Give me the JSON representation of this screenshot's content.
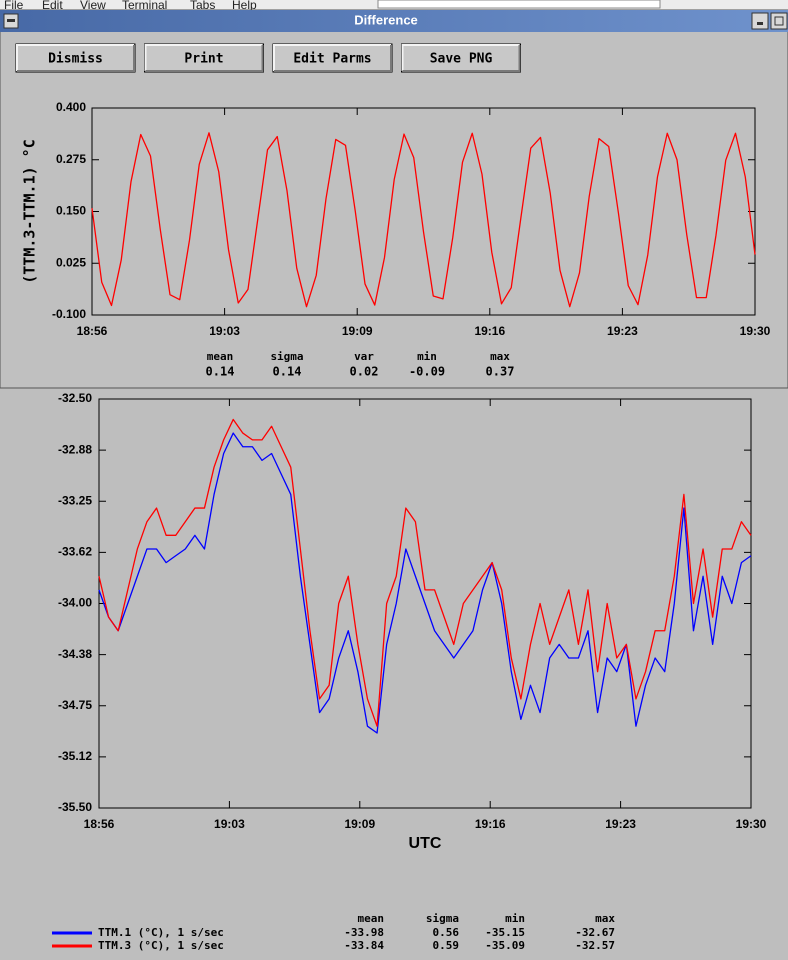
{
  "menu": [
    "File",
    "Edit",
    "View",
    "Terminal",
    "Tabs",
    "Help"
  ],
  "window": {
    "title": "Difference",
    "buttons": [
      "Dismiss",
      "Print",
      "Edit Parms",
      "Save PNG"
    ]
  },
  "chart_data": [
    {
      "type": "line",
      "ylabel": "(TTM.3-TTM.1) °C",
      "xlim": [
        1136,
        1170
      ],
      "xticks": [
        {
          "value": 1136,
          "label": "18:56"
        },
        {
          "value": 1142.8,
          "label": "19:03"
        },
        {
          "value": 1149.6,
          "label": "19:09"
        },
        {
          "value": 1156.4,
          "label": "19:16"
        },
        {
          "value": 1163.2,
          "label": "19:23"
        },
        {
          "value": 1170,
          "label": "19:30"
        }
      ],
      "ylim": [
        -0.1,
        0.4
      ],
      "yticks": [
        {
          "value": 0.4,
          "label": "0.400"
        },
        0.275,
        {
          "value": 0.15,
          "label": "0.150"
        },
        0.025,
        {
          "value": -0.1,
          "label": "-0.100"
        }
      ],
      "grid": false,
      "x": [
        1136,
        1136.5,
        1137,
        1137.5,
        1138,
        1138.5,
        1139,
        1139.5,
        1140,
        1140.5,
        1141,
        1141.5,
        1142,
        1142.5,
        1143,
        1143.5,
        1144,
        1144.5,
        1145,
        1145.5,
        1146,
        1146.5,
        1147,
        1147.5,
        1148,
        1148.5,
        1149,
        1149.5,
        1150,
        1150.5,
        1151,
        1151.5,
        1152,
        1152.5,
        1153,
        1153.5,
        1154,
        1154.5,
        1155,
        1155.5,
        1156,
        1156.5,
        1157,
        1157.5,
        1158,
        1158.5,
        1159,
        1159.5,
        1160,
        1160.5,
        1161,
        1161.5,
        1162,
        1162.5,
        1163,
        1163.5,
        1164,
        1164.5,
        1165,
        1165.5,
        1166,
        1166.5,
        1167,
        1167.5,
        1168,
        1168.5,
        1169,
        1169.5,
        1170
      ],
      "series": [
        {
          "color": "#ff0000",
          "values": [
            0.158,
            -0.021,
            -0.077,
            0.033,
            0.222,
            0.336,
            0.284,
            0.107,
            -0.051,
            -0.063,
            0.081,
            0.264,
            0.34,
            0.246,
            0.058,
            -0.071,
            -0.038,
            0.131,
            0.299,
            0.331,
            0.2,
            0.013,
            -0.08,
            -0.004,
            0.181,
            0.324,
            0.31,
            0.151,
            -0.025,
            -0.076,
            0.039,
            0.228,
            0.337,
            0.28,
            0.101,
            -0.054,
            -0.061,
            0.087,
            0.269,
            0.339,
            0.24,
            0.052,
            -0.073,
            -0.034,
            0.137,
            0.303,
            0.329,
            0.194,
            0.008,
            -0.08,
            0.002,
            0.187,
            0.326,
            0.307,
            0.145,
            -0.029,
            -0.075,
            0.045,
            0.234,
            0.339,
            0.275,
            0.094,
            -0.058,
            -0.058,
            0.093,
            0.274,
            0.339,
            0.234,
            0.046
          ]
        }
      ],
      "statistics": {
        "headers": [
          "mean",
          "sigma",
          "var",
          "min",
          "max"
        ],
        "values": [
          0.14,
          0.14,
          0.02,
          -0.09,
          0.37
        ]
      }
    },
    {
      "type": "line",
      "xlabel": "UTC",
      "xlim": [
        1136,
        1170
      ],
      "xticks": [
        {
          "value": 1136,
          "label": "18:56"
        },
        {
          "value": 1142.8,
          "label": "19:03"
        },
        {
          "value": 1149.6,
          "label": "19:09"
        },
        {
          "value": 1156.4,
          "label": "19:16"
        },
        {
          "value": 1163.2,
          "label": "19:23"
        },
        {
          "value": 1170,
          "label": "19:30"
        }
      ],
      "ylim": [
        -35.5,
        -32.5
      ],
      "yticks": [
        {
          "value": -32.5,
          "label": "-32.50"
        },
        {
          "value": -32.875,
          "label": "-32.88"
        },
        -33.25,
        {
          "value": -33.625,
          "label": "-33.62"
        },
        {
          "value": -34,
          "label": "-34.00"
        },
        {
          "value": -34.375,
          "label": "-34.38"
        },
        -34.75,
        {
          "value": -35.125,
          "label": "-35.12"
        },
        {
          "value": -35.5,
          "label": "-35.50"
        }
      ],
      "grid": false,
      "x": [
        1136,
        1136.5,
        1137,
        1137.5,
        1138,
        1138.5,
        1139,
        1139.5,
        1140,
        1140.5,
        1141,
        1141.5,
        1142,
        1142.5,
        1143,
        1143.5,
        1144,
        1144.5,
        1145,
        1145.5,
        1146,
        1146.5,
        1147,
        1147.5,
        1148,
        1148.5,
        1149,
        1149.5,
        1150,
        1150.5,
        1151,
        1151.5,
        1152,
        1152.5,
        1153,
        1153.5,
        1154,
        1154.5,
        1155,
        1155.5,
        1156,
        1156.5,
        1157,
        1157.5,
        1158,
        1158.5,
        1159,
        1159.5,
        1160,
        1160.5,
        1161,
        1161.5,
        1162,
        1162.5,
        1163,
        1163.5,
        1164,
        1164.5,
        1165,
        1165.5,
        1166,
        1166.5,
        1167,
        1167.5,
        1168,
        1168.5,
        1169,
        1169.5,
        1170
      ],
      "series": [
        {
          "name": "TTM.1 (°C), 1 s/sec",
          "color": "#0000ff",
          "values": [
            -33.9,
            -34.1,
            -34.2,
            -34.0,
            -33.8,
            -33.6,
            -33.6,
            -33.7,
            -33.65,
            -33.6,
            -33.5,
            -33.6,
            -33.2,
            -32.9,
            -32.75,
            -32.85,
            -32.85,
            -32.95,
            -32.9,
            -33.05,
            -33.2,
            -33.8,
            -34.3,
            -34.8,
            -34.7,
            -34.4,
            -34.2,
            -34.5,
            -34.9,
            -34.95,
            -34.3,
            -34.0,
            -33.6,
            -33.8,
            -34.0,
            -34.2,
            -34.3,
            -34.4,
            -34.3,
            -34.2,
            -33.9,
            -33.7,
            -34.0,
            -34.5,
            -34.85,
            -34.6,
            -34.8,
            -34.4,
            -34.3,
            -34.4,
            -34.4,
            -34.2,
            -34.8,
            -34.4,
            -34.5,
            -34.3,
            -34.9,
            -34.6,
            -34.4,
            -34.5,
            -34.0,
            -33.3,
            -34.2,
            -33.8,
            -34.3,
            -33.8,
            -34.0,
            -33.7,
            -33.65
          ]
        },
        {
          "name": "TTM.3 (°C), 1 s/sec",
          "color": "#ff0000",
          "values": [
            -33.8,
            -34.1,
            -34.2,
            -33.9,
            -33.6,
            -33.4,
            -33.3,
            -33.5,
            -33.5,
            -33.4,
            -33.3,
            -33.3,
            -33.0,
            -32.8,
            -32.65,
            -32.75,
            -32.8,
            -32.8,
            -32.7,
            -32.85,
            -33.0,
            -33.6,
            -34.2,
            -34.7,
            -34.6,
            -34.0,
            -33.8,
            -34.3,
            -34.7,
            -34.9,
            -34.0,
            -33.8,
            -33.3,
            -33.4,
            -33.9,
            -33.9,
            -34.1,
            -34.3,
            -34.0,
            -33.9,
            -33.8,
            -33.7,
            -33.9,
            -34.4,
            -34.7,
            -34.3,
            -34.0,
            -34.3,
            -34.1,
            -33.9,
            -34.3,
            -33.9,
            -34.5,
            -34.0,
            -34.4,
            -34.3,
            -34.7,
            -34.5,
            -34.2,
            -34.2,
            -33.8,
            -33.2,
            -34.0,
            -33.6,
            -34.1,
            -33.6,
            -33.6,
            -33.4,
            -33.5
          ]
        }
      ],
      "statistics": {
        "headers": [
          "mean",
          "sigma",
          "min",
          "max"
        ],
        "rows": [
          [
            -33.98,
            0.56,
            -35.15,
            -32.67
          ],
          [
            -33.84,
            0.59,
            -35.09,
            -32.57
          ]
        ]
      }
    }
  ]
}
